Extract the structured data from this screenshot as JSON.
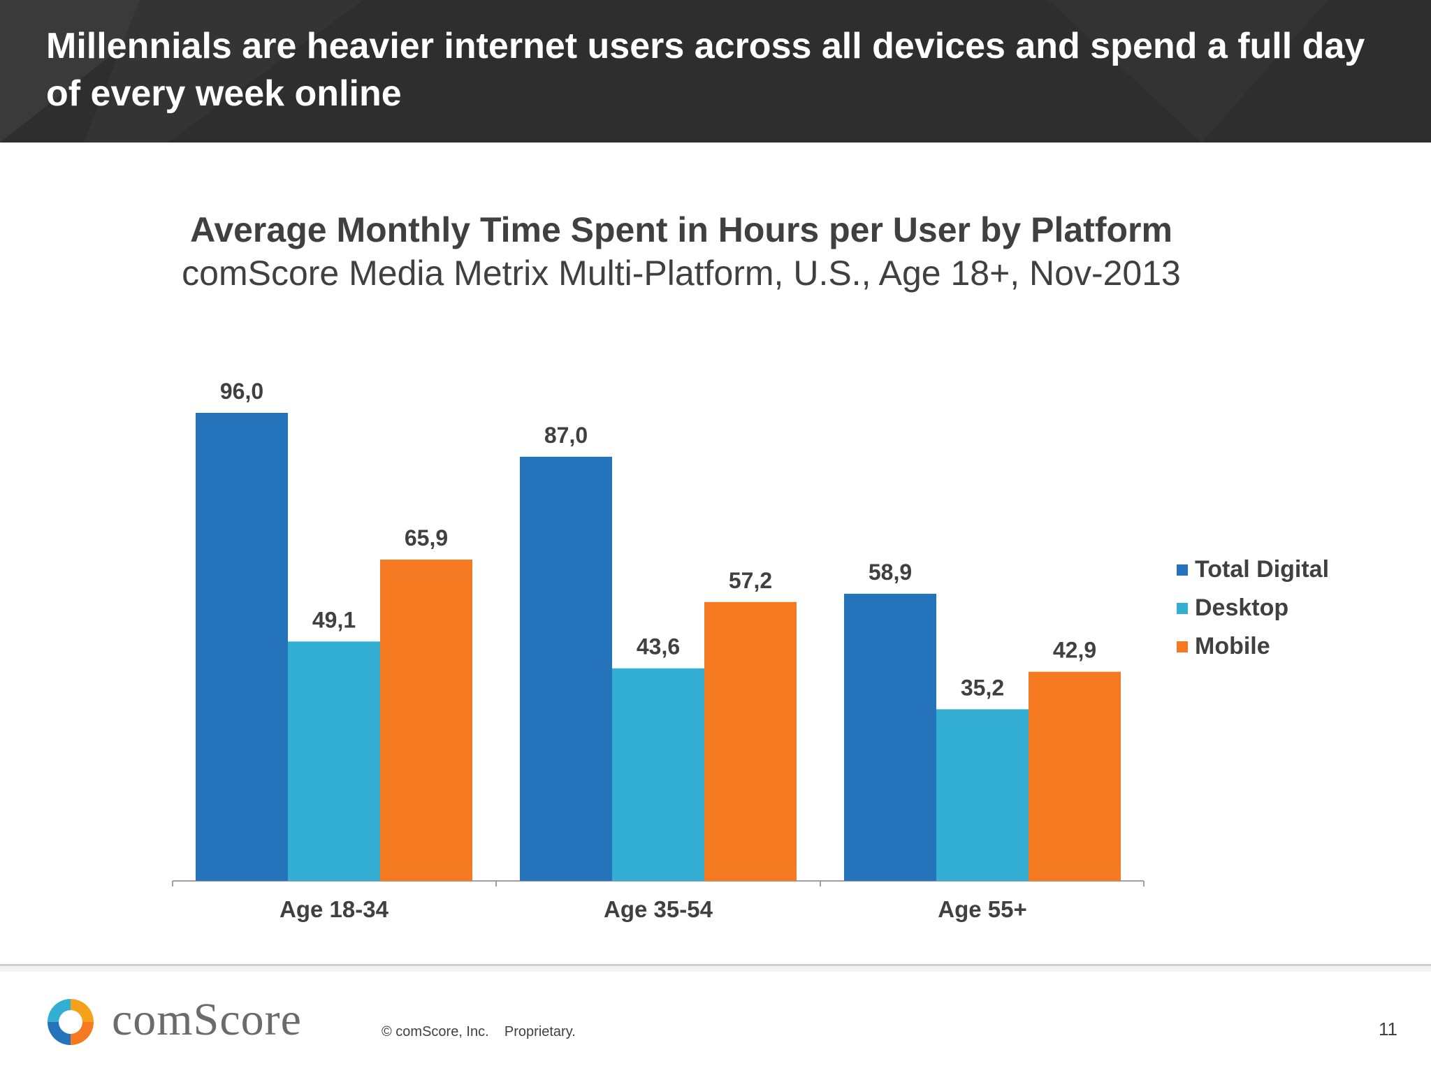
{
  "header": {
    "title": "Millennials are heavier internet users across all devices and spend a full day of every week online"
  },
  "chart_data": {
    "type": "bar",
    "title": "Average Monthly Time Spent in Hours per User by Platform",
    "subtitle": "comScore Media Metrix Multi-Platform, U.S., Age 18+, Nov-2013",
    "categories": [
      "Age 18-34",
      "Age 35-54",
      "Age 55+"
    ],
    "series": [
      {
        "name": "Total Digital",
        "color": "#2574bb",
        "values": [
          96.0,
          87.0,
          58.9
        ],
        "labels": [
          "96,0",
          "87,0",
          "58,9"
        ]
      },
      {
        "name": "Desktop",
        "color": "#33afd4",
        "values": [
          49.1,
          43.6,
          35.2
        ],
        "labels": [
          "49,1",
          "43,6",
          "35,2"
        ]
      },
      {
        "name": "Mobile",
        "color": "#f47920",
        "values": [
          65.9,
          57.2,
          42.9
        ],
        "labels": [
          "65,9",
          "57,2",
          "42,9"
        ]
      }
    ],
    "ylim": [
      0,
      100
    ],
    "grid": false,
    "legend_position": "right"
  },
  "footer": {
    "logo_text": "comScore",
    "copyright": "© comScore, Inc.",
    "proprietary": "Proprietary.",
    "page_number": "11"
  }
}
